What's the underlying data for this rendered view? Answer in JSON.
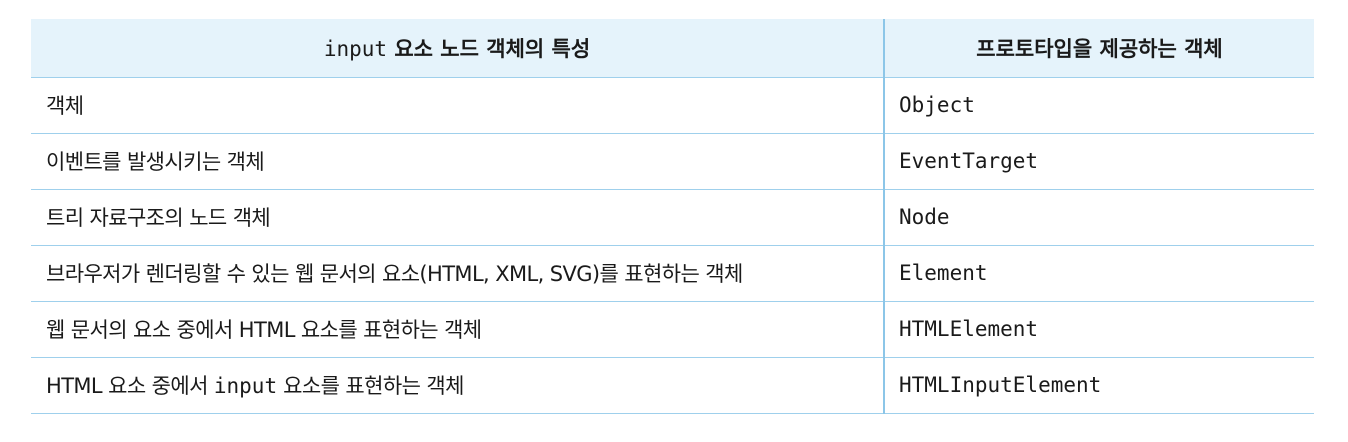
{
  "table": {
    "headers": {
      "left_code": "input",
      "left_text": " 요소 노드 객체의 특성",
      "right": "프로토타입을 제공하는 객체"
    },
    "rows": [
      {
        "desc_pre": "객체",
        "desc_code": "",
        "desc_post": "",
        "proto": "Object"
      },
      {
        "desc_pre": "이벤트를 발생시키는 객체",
        "desc_code": "",
        "desc_post": "",
        "proto": "EventTarget"
      },
      {
        "desc_pre": "트리 자료구조의 노드 객체",
        "desc_code": "",
        "desc_post": "",
        "proto": "Node"
      },
      {
        "desc_pre": "브라우저가 렌더링할 수 있는 웹 문서의 요소(HTML, XML, SVG)를 표현하는 객체",
        "desc_code": "",
        "desc_post": "",
        "proto": "Element"
      },
      {
        "desc_pre": "웹 문서의 요소 중에서 HTML 요소를 표현하는 객체",
        "desc_code": "",
        "desc_post": "",
        "proto": "HTMLElement"
      },
      {
        "desc_pre": "HTML 요소 중에서 ",
        "desc_code": "input",
        "desc_post": " 요소를 표현하는 객체",
        "proto": "HTMLInputElement"
      }
    ]
  },
  "colors": {
    "header_bg": "#e5f3fb",
    "rule": "#9fd0ec",
    "divider": "#8cc6e8"
  }
}
